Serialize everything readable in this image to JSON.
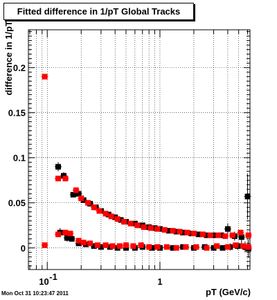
{
  "chart_data": {
    "type": "scatter",
    "title": "Fitted difference in 1/pT  Global Tracks",
    "xlabel": "pT (GeV/c)",
    "ylabel": "difference in 1/pT",
    "x_scale": "log",
    "xlim": [
      0.068,
      6.3
    ],
    "ylim": [
      -0.024,
      0.242
    ],
    "grid": true,
    "y_ticks": [
      {
        "value": 0,
        "label": "0"
      },
      {
        "value": 0.05,
        "label": "0.05"
      },
      {
        "value": 0.1,
        "label": "0.1"
      },
      {
        "value": 0.15,
        "label": "0.15"
      },
      {
        "value": 0.2,
        "label": "0.2"
      }
    ],
    "x_ticks": [
      {
        "value": 0.1,
        "label": "10",
        "exponent": "-1"
      },
      {
        "value": 1,
        "label": "1",
        "exponent": ""
      }
    ],
    "colors": {
      "black": "#000000",
      "red": "#ff0000"
    },
    "series": [
      {
        "color": "#000000",
        "points": [
          {
            "x": 0.125,
            "y": 0.09,
            "yerr": 0.005
          },
          {
            "x": 0.14,
            "y": 0.08,
            "yerr": 0.004
          },
          {
            "x": 0.17,
            "y": 0.059,
            "yerr": 0.003
          },
          {
            "x": 0.19,
            "y": 0.06
          },
          {
            "x": 0.21,
            "y": 0.053
          },
          {
            "x": 0.24,
            "y": 0.049
          },
          {
            "x": 0.27,
            "y": 0.045
          },
          {
            "x": 0.3,
            "y": 0.041
          },
          {
            "x": 0.35,
            "y": 0.037
          },
          {
            "x": 0.4,
            "y": 0.034
          },
          {
            "x": 0.45,
            "y": 0.031
          },
          {
            "x": 0.5,
            "y": 0.029
          },
          {
            "x": 0.6,
            "y": 0.027
          },
          {
            "x": 0.7,
            "y": 0.025
          },
          {
            "x": 0.8,
            "y": 0.023
          },
          {
            "x": 0.9,
            "y": 0.022
          },
          {
            "x": 1.0,
            "y": 0.021
          },
          {
            "x": 1.2,
            "y": 0.019
          },
          {
            "x": 1.4,
            "y": 0.018
          },
          {
            "x": 1.6,
            "y": 0.017
          },
          {
            "x": 1.9,
            "y": 0.016
          },
          {
            "x": 2.2,
            "y": 0.015
          },
          {
            "x": 2.6,
            "y": 0.014
          },
          {
            "x": 3.0,
            "y": 0.014
          },
          {
            "x": 3.5,
            "y": 0.014
          },
          {
            "x": 4.0,
            "y": 0.021,
            "yerr": 0.006
          },
          {
            "x": 4.6,
            "y": 0.013,
            "yerr": 0.005
          },
          {
            "x": 5.3,
            "y": 0.012,
            "yerr": 0.008
          },
          {
            "x": 6.0,
            "y": 0.057,
            "yerr": 0.025
          },
          {
            "x": 0.13,
            "y": 0.017,
            "yerr": 0.005
          },
          {
            "x": 0.15,
            "y": 0.011,
            "yerr": 0.004
          },
          {
            "x": 0.165,
            "y": 0.01
          },
          {
            "x": 0.19,
            "y": 0.005
          },
          {
            "x": 0.22,
            "y": 0.004
          },
          {
            "x": 0.26,
            "y": 0.002
          },
          {
            "x": 0.3,
            "y": 0.001
          },
          {
            "x": 0.36,
            "y": 0.001
          },
          {
            "x": 0.42,
            "y": 0.0
          },
          {
            "x": 0.5,
            "y": 0.0
          },
          {
            "x": 0.6,
            "y": 0.0
          },
          {
            "x": 0.7,
            "y": 0.001
          },
          {
            "x": 0.85,
            "y": 0.0
          },
          {
            "x": 1.0,
            "y": 0.0
          },
          {
            "x": 1.3,
            "y": 0.0
          },
          {
            "x": 1.6,
            "y": 0.001
          },
          {
            "x": 2.0,
            "y": 0.0
          },
          {
            "x": 2.5,
            "y": 0.001
          },
          {
            "x": 3.0,
            "y": 0.0
          },
          {
            "x": 3.6,
            "y": 0.0
          },
          {
            "x": 4.2,
            "y": 0.001,
            "yerr": 0.004
          },
          {
            "x": 4.9,
            "y": 0.002,
            "yerr": 0.004
          },
          {
            "x": 5.7,
            "y": 0.001,
            "yerr": 0.006
          },
          {
            "x": 6.1,
            "y": -0.001,
            "yerr": 0.01
          }
        ]
      },
      {
        "color": "#ff0000",
        "points": [
          {
            "x": 0.095,
            "y": 0.19,
            "yerr": 0.002
          },
          {
            "x": 0.125,
            "y": 0.077,
            "yerr": 0.003
          },
          {
            "x": 0.145,
            "y": 0.077,
            "yerr": 0.003
          },
          {
            "x": 0.18,
            "y": 0.064
          },
          {
            "x": 0.2,
            "y": 0.055
          },
          {
            "x": 0.23,
            "y": 0.05
          },
          {
            "x": 0.26,
            "y": 0.045
          },
          {
            "x": 0.29,
            "y": 0.041
          },
          {
            "x": 0.33,
            "y": 0.038
          },
          {
            "x": 0.37,
            "y": 0.035
          },
          {
            "x": 0.42,
            "y": 0.032
          },
          {
            "x": 0.48,
            "y": 0.029
          },
          {
            "x": 0.55,
            "y": 0.027
          },
          {
            "x": 0.63,
            "y": 0.025
          },
          {
            "x": 0.72,
            "y": 0.023
          },
          {
            "x": 0.83,
            "y": 0.022
          },
          {
            "x": 0.95,
            "y": 0.021
          },
          {
            "x": 1.1,
            "y": 0.02
          },
          {
            "x": 1.3,
            "y": 0.019
          },
          {
            "x": 1.5,
            "y": 0.018
          },
          {
            "x": 1.75,
            "y": 0.017
          },
          {
            "x": 2.0,
            "y": 0.016
          },
          {
            "x": 2.4,
            "y": 0.015
          },
          {
            "x": 2.8,
            "y": 0.014
          },
          {
            "x": 3.3,
            "y": 0.014
          },
          {
            "x": 3.8,
            "y": 0.013
          },
          {
            "x": 4.4,
            "y": 0.014
          },
          {
            "x": 5.2,
            "y": 0.017
          },
          {
            "x": 6.1,
            "y": 0.014
          },
          {
            "x": 0.095,
            "y": 0.003
          },
          {
            "x": 0.125,
            "y": 0.015,
            "yerr": 0.003
          },
          {
            "x": 0.145,
            "y": 0.017
          },
          {
            "x": 0.16,
            "y": 0.016
          },
          {
            "x": 0.19,
            "y": 0.008
          },
          {
            "x": 0.21,
            "y": 0.006
          },
          {
            "x": 0.24,
            "y": 0.005
          },
          {
            "x": 0.28,
            "y": 0.003
          },
          {
            "x": 0.33,
            "y": 0.003
          },
          {
            "x": 0.38,
            "y": 0.002
          },
          {
            "x": 0.44,
            "y": 0.002
          },
          {
            "x": 0.5,
            "y": 0.003
          },
          {
            "x": 0.58,
            "y": 0.002
          },
          {
            "x": 0.68,
            "y": 0.003
          },
          {
            "x": 0.8,
            "y": 0.001
          },
          {
            "x": 0.95,
            "y": 0.001
          },
          {
            "x": 1.15,
            "y": 0.001
          },
          {
            "x": 1.4,
            "y": 0.0
          },
          {
            "x": 1.7,
            "y": 0.001
          },
          {
            "x": 2.1,
            "y": 0.001
          },
          {
            "x": 2.6,
            "y": 0.0
          },
          {
            "x": 3.2,
            "y": 0.002
          },
          {
            "x": 4.0,
            "y": 0.001
          },
          {
            "x": 4.7,
            "y": 0.003
          },
          {
            "x": 5.5,
            "y": 0.002
          },
          {
            "x": 6.1,
            "y": 0.001
          }
        ]
      }
    ]
  },
  "timestamp": "Mon Oct 31 10:23:47 2011"
}
